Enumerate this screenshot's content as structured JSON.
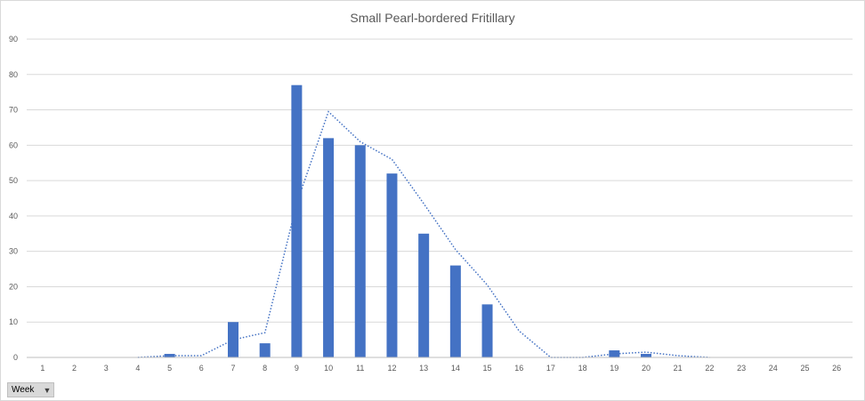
{
  "chart_data": {
    "type": "bar",
    "title": "Small Pearl-bordered Fritillary",
    "xlabel": "",
    "ylabel": "",
    "categories": [
      "1",
      "2",
      "3",
      "4",
      "5",
      "6",
      "7",
      "8",
      "9",
      "10",
      "11",
      "12",
      "13",
      "14",
      "15",
      "16",
      "17",
      "18",
      "19",
      "20",
      "21",
      "22",
      "23",
      "24",
      "25",
      "26"
    ],
    "series": [
      {
        "type": "bar",
        "values": [
          0,
          0,
          0,
          0,
          1,
          0,
          10,
          4,
          77,
          62,
          60,
          52,
          35,
          26,
          15,
          0,
          0,
          0,
          2,
          1,
          0,
          0,
          0,
          0,
          0,
          0
        ],
        "color": "#4472c4"
      },
      {
        "type": "line",
        "style": "dotted",
        "values": [
          null,
          null,
          null,
          0,
          0.5,
          0.5,
          5,
          7,
          43.5,
          69.5,
          61,
          56,
          43.5,
          30.5,
          20.5,
          7.5,
          0,
          0,
          1,
          1.5,
          0.5,
          0,
          null,
          null,
          null,
          null
        ],
        "color": "#4472c4"
      }
    ],
    "ylim": [
      0,
      90
    ],
    "yticks": [
      0,
      10,
      20,
      30,
      40,
      50,
      60,
      70,
      80,
      90
    ],
    "grid": "horizontal",
    "legend": "none"
  },
  "field_button": {
    "label": "Week",
    "icon": "filter-dropdown-icon"
  }
}
